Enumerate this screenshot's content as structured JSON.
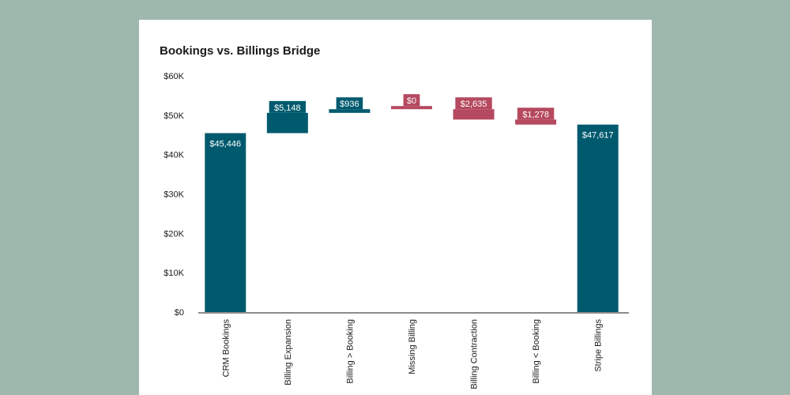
{
  "colors": {
    "page_background": "#9fb8ae",
    "card_background": "#ffffff",
    "increase": "#005a6e",
    "decrease": "#b5495f",
    "total": "#005a6e"
  },
  "chart_data": {
    "type": "bar",
    "subtype": "waterfall",
    "title": "Bookings vs. Billings Bridge",
    "xlabel": "",
    "ylabel": "",
    "ylim": [
      0,
      60000
    ],
    "yticks": [
      0,
      10000,
      20000,
      30000,
      40000,
      50000,
      60000
    ],
    "ytick_labels": [
      "$0",
      "$10K",
      "$20K",
      "$30K",
      "$40K",
      "$50K",
      "$60K"
    ],
    "grid": false,
    "legend": "none",
    "categories": [
      "CRM Bookings",
      "Billing Expansion",
      "Billing > Booking",
      "Missing Billing",
      "Billing Contraction",
      "Billing < Booking",
      "Stripe Billings"
    ],
    "values": [
      45446,
      5148,
      936,
      0,
      -2635,
      -1278,
      47617
    ],
    "kinds": [
      "total",
      "increase",
      "increase",
      "decrease",
      "decrease",
      "decrease",
      "total"
    ],
    "data_labels": [
      "$45,446",
      "$5,148",
      "$936",
      "$0",
      "$2,635",
      "$1,278",
      "$47,617"
    ]
  }
}
